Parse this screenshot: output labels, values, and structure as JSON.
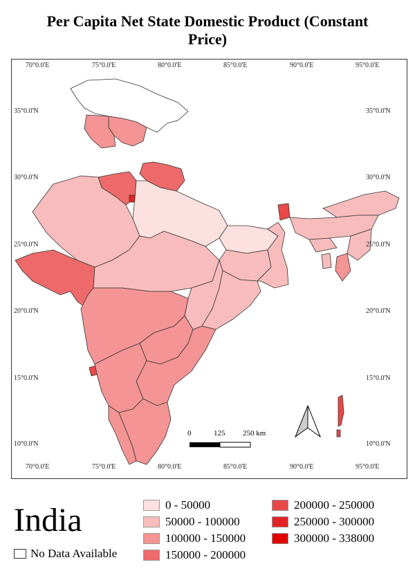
{
  "title": "Per Capita Net State Domestic Product (Constant Price)",
  "title_line1": "Per Capita Net State Domestic Product (Constant",
  "title_line2": "Price)",
  "country": "India",
  "no_data_label": "No Data Available",
  "longitudes": [
    "70°0.0'E",
    "75°0.0'E",
    "80°0.0'E",
    "85°0.0'E",
    "90°0.0'E",
    "95°0.0'E"
  ],
  "latitudes": [
    "35°0.0'N",
    "30°0.0'N",
    "25°0.0'N",
    "20°0.0'N",
    "15°0.0'N",
    "10°0.0'N"
  ],
  "scale_labels": [
    "0",
    "125",
    "250 km"
  ],
  "legend": [
    {
      "label": "0 - 50000",
      "color": "#fde0e0"
    },
    {
      "label": "50000 - 100000",
      "color": "#f9bcbc"
    },
    {
      "label": "100000 - 150000",
      "color": "#f49494"
    },
    {
      "label": "150000 - 200000",
      "color": "#ee6a6a"
    },
    {
      "label": "200000 - 250000",
      "color": "#e84848"
    },
    {
      "label": "250000 - 300000",
      "color": "#e42424"
    },
    {
      "label": "300000 - 338000",
      "color": "#e00000"
    }
  ],
  "colors": {
    "class1": "#fde0e0",
    "class2": "#f9bcbc",
    "class3": "#f49494",
    "class4": "#ee6a6a",
    "class5": "#e84848",
    "class6": "#e42424",
    "class7": "#e00000",
    "nodata": "#ffffff",
    "border": "#333333"
  }
}
